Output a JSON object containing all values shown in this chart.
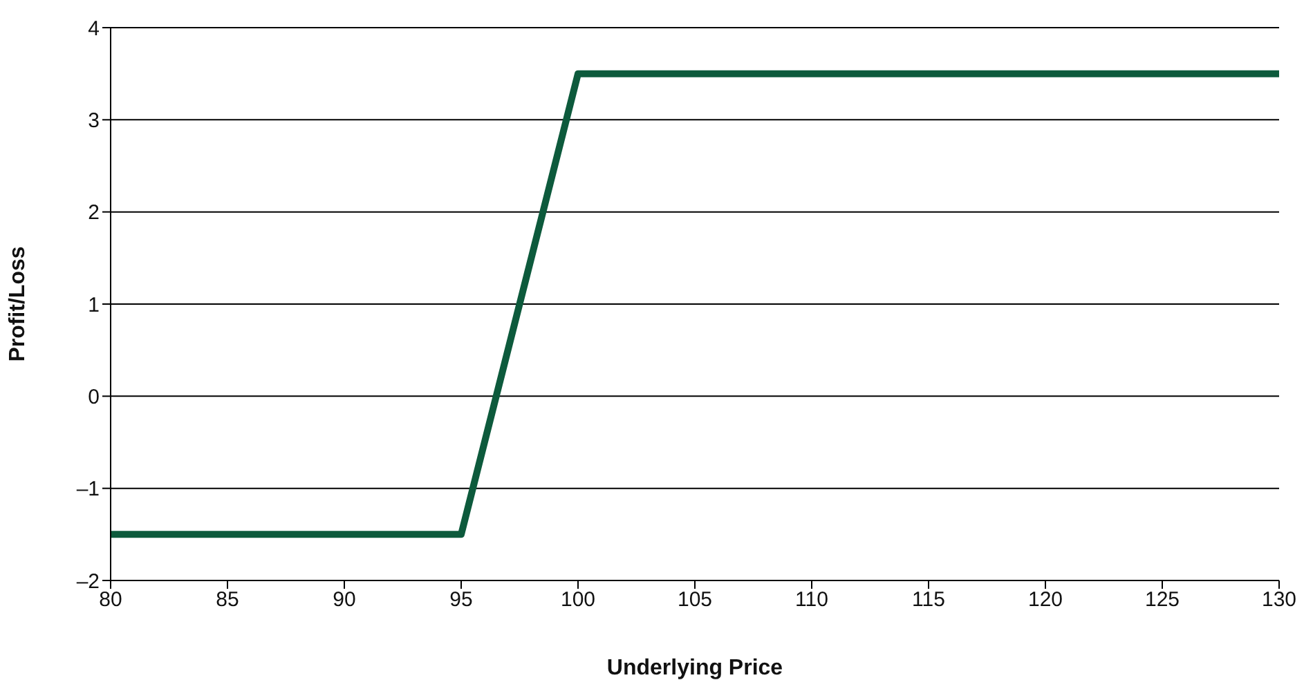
{
  "chart_data": {
    "type": "line",
    "xlabel": "Underlying Price",
    "ylabel": "Profit/Loss",
    "x": [
      80,
      95,
      100,
      130
    ],
    "series": [
      {
        "color": "#0d5a3c",
        "values": [
          -1.5,
          -1.5,
          3.5,
          3.5
        ]
      }
    ],
    "xlim": [
      80,
      130
    ],
    "xticks": [
      80,
      85,
      90,
      95,
      100,
      105,
      110,
      115,
      120,
      125,
      130
    ],
    "ylim": [
      -2,
      4
    ],
    "yticks": [
      {
        "value": -2,
        "label": "–2"
      },
      {
        "value": -1,
        "label": "–1"
      },
      0,
      1,
      2,
      3,
      4
    ],
    "grid": "y",
    "marker": "none",
    "line_style": "solid"
  }
}
